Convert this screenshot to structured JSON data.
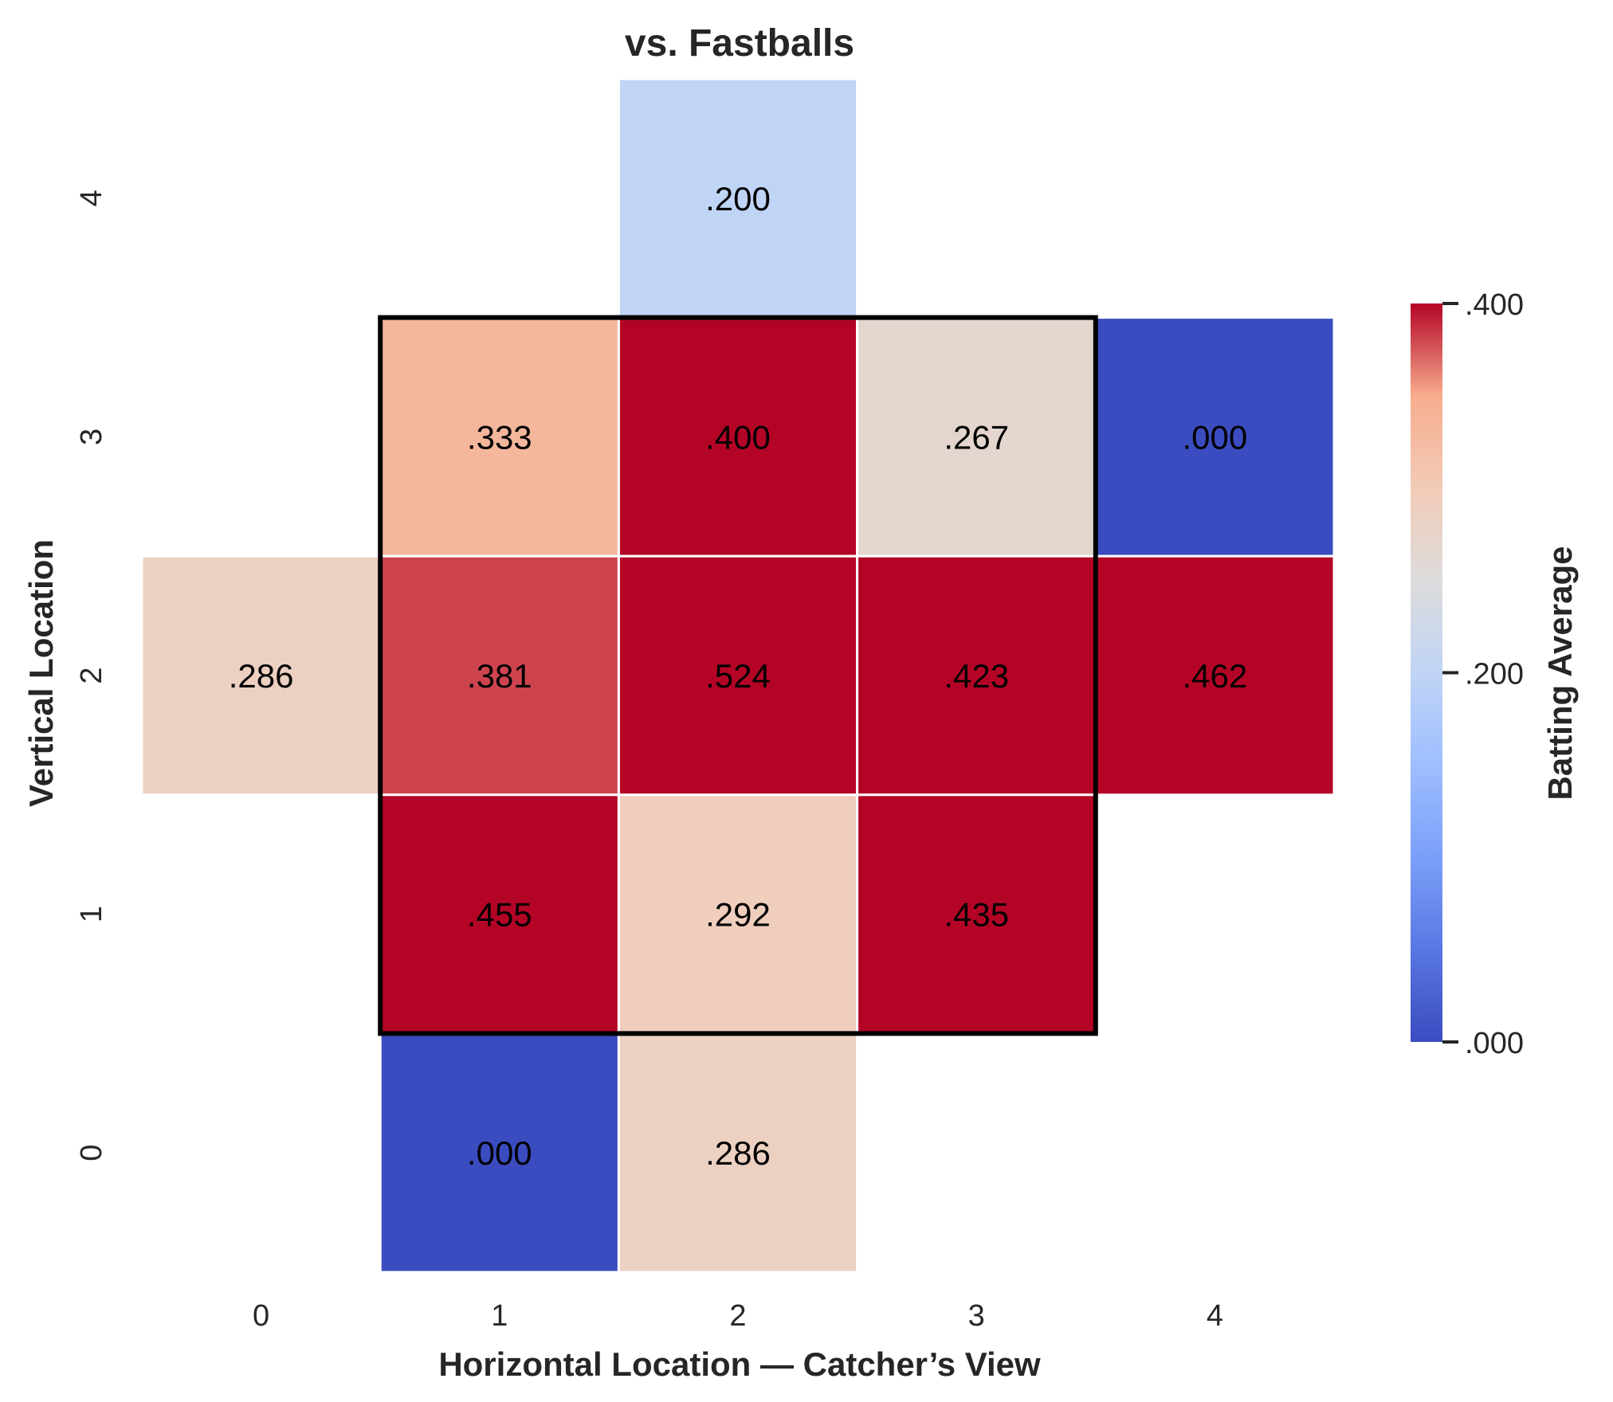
{
  "chart_data": {
    "type": "heatmap",
    "title": "vs. Fastballs",
    "xlabel": "Horizontal Location — Catcher’s View",
    "ylabel": "Vertical Location",
    "x_ticks": [
      "0",
      "1",
      "2",
      "3",
      "4"
    ],
    "y_ticks": [
      "0",
      "1",
      "2",
      "3",
      "4"
    ],
    "colorbar": {
      "label": "Batting Average",
      "range": [
        0,
        0.4
      ],
      "ticks": [
        {
          "value": 0,
          "label": ".000"
        },
        {
          "value": 0.2,
          "label": ".200"
        },
        {
          "value": 0.4,
          "label": ".400"
        }
      ],
      "colormap": "coolwarm"
    },
    "cells": [
      {
        "x": 2,
        "y": 4,
        "value": 0.2,
        "label": ".200"
      },
      {
        "x": 1,
        "y": 3,
        "value": 0.333,
        "label": ".333"
      },
      {
        "x": 2,
        "y": 3,
        "value": 0.4,
        "label": ".400"
      },
      {
        "x": 3,
        "y": 3,
        "value": 0.267,
        "label": ".267"
      },
      {
        "x": 4,
        "y": 3,
        "value": 0.0,
        "label": ".000"
      },
      {
        "x": 0,
        "y": 2,
        "value": 0.286,
        "label": ".286"
      },
      {
        "x": 1,
        "y": 2,
        "value": 0.381,
        "label": ".381"
      },
      {
        "x": 2,
        "y": 2,
        "value": 0.524,
        "label": ".524"
      },
      {
        "x": 3,
        "y": 2,
        "value": 0.423,
        "label": ".423"
      },
      {
        "x": 4,
        "y": 2,
        "value": 0.462,
        "label": ".462"
      },
      {
        "x": 1,
        "y": 1,
        "value": 0.455,
        "label": ".455"
      },
      {
        "x": 2,
        "y": 1,
        "value": 0.292,
        "label": ".292"
      },
      {
        "x": 3,
        "y": 1,
        "value": 0.435,
        "label": ".435"
      },
      {
        "x": 1,
        "y": 0,
        "value": 0.0,
        "label": ".000"
      },
      {
        "x": 2,
        "y": 0,
        "value": 0.286,
        "label": ".286"
      }
    ],
    "strike_zone": {
      "x_range": [
        1,
        3
      ],
      "y_range": [
        1,
        3
      ]
    }
  }
}
